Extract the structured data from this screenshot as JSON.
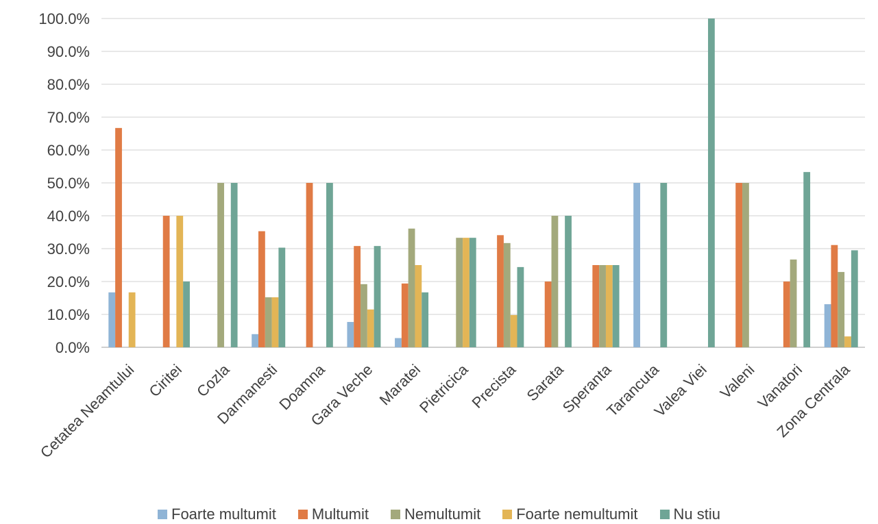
{
  "chart_data": {
    "type": "bar",
    "categories": [
      "Cetatea Neamtului",
      "Ciritei",
      "Cozla",
      "Darmanesti",
      "Doamna",
      "Gara Veche",
      "Maratei",
      "Pietricica",
      "Precista",
      "Sarata",
      "Speranta",
      "Tarancuta",
      "Valea Viei",
      "Valeni",
      "Vanatori",
      "Zona Centrala"
    ],
    "series": [
      {
        "name": "Foarte multumit",
        "color": "#8FB4D6",
        "values": [
          16.7,
          0,
          0,
          4.0,
          0,
          7.7,
          2.8,
          0,
          0,
          0,
          0,
          50.0,
          0,
          0,
          0,
          13.1
        ]
      },
      {
        "name": "Multumit",
        "color": "#E07B45",
        "values": [
          66.7,
          40.0,
          0,
          35.3,
          50.0,
          30.8,
          19.4,
          0,
          34.1,
          20.0,
          25.0,
          0,
          0,
          50.0,
          20.0,
          31.1
        ]
      },
      {
        "name": "Nemultumit",
        "color": "#A3A97C",
        "values": [
          0,
          0,
          50.0,
          15.2,
          0,
          19.2,
          36.1,
          33.3,
          31.7,
          40.0,
          25.0,
          0,
          0,
          50.0,
          26.7,
          22.9
        ]
      },
      {
        "name": "Foarte nemultumit",
        "color": "#E3B556",
        "values": [
          16.7,
          40.0,
          0,
          15.2,
          0,
          11.5,
          25.0,
          33.3,
          9.8,
          0,
          25.0,
          0,
          0,
          0,
          0,
          3.3
        ]
      },
      {
        "name": "Nu stiu",
        "color": "#6FA596",
        "values": [
          0,
          20.0,
          50.0,
          30.3,
          50.0,
          30.8,
          16.7,
          33.3,
          24.4,
          40.0,
          25.0,
          50.0,
          100.0,
          0,
          53.3,
          29.5
        ]
      }
    ],
    "y_ticks": [
      "0.0%",
      "10.0%",
      "20.0%",
      "30.0%",
      "40.0%",
      "50.0%",
      "60.0%",
      "70.0%",
      "80.0%",
      "90.0%",
      "100.0%"
    ],
    "ylim": [
      0,
      100
    ],
    "y_unit": "%",
    "grid": true,
    "legend_position": "bottom"
  }
}
